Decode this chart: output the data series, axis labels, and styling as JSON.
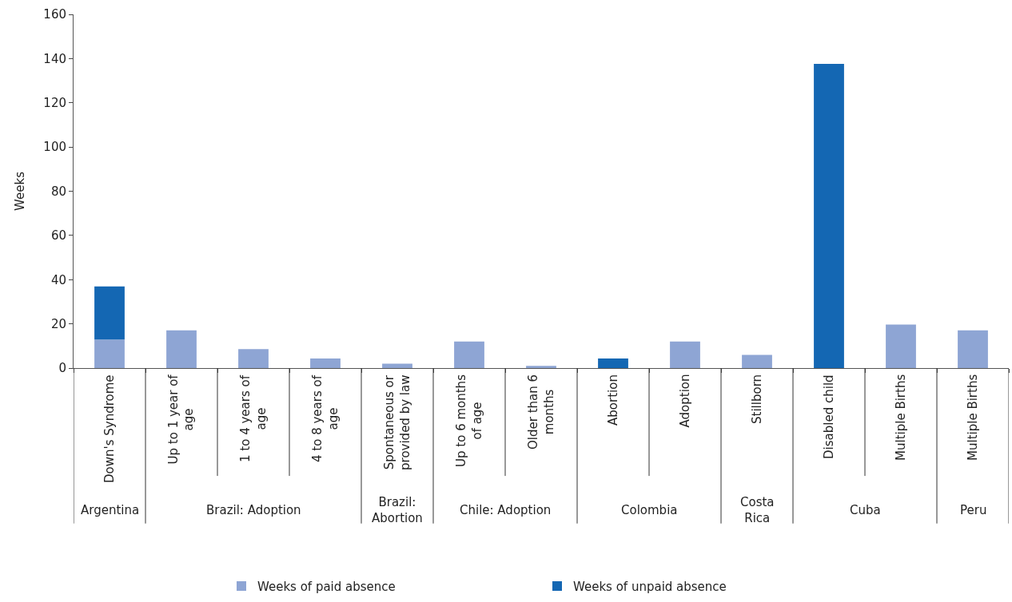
{
  "chart_data": [
    {
      "type": "bar",
      "stacked": true,
      "ylabel": "Weeks",
      "xlabel": "Argentina",
      "categories": [
        "Down's Syndrome"
      ],
      "ylim": [
        0,
        160
      ],
      "yticks": [
        0,
        20,
        40,
        60,
        80,
        100,
        120,
        140,
        160
      ],
      "legend": "bottom",
      "series": [
        {
          "name": "Weeks of paid absence",
          "color": "#8ea5d4",
          "values": [
            12.9
          ]
        },
        {
          "name": "Weeks of unpaid absence",
          "color": "#1467b3",
          "values": [
            24
          ]
        }
      ]
    },
    {
      "type": "bar",
      "xlabel": "Brazil: Adoption",
      "categories": [
        "Up to 1 year of age",
        "1 to 4 years of age",
        "4 to 8 years of age"
      ],
      "ylim": [
        0,
        160
      ],
      "tick_labels": "x",
      "series": [
        {
          "color": "#8ea5d4",
          "values": [
            17.1,
            8.6,
            4.3
          ]
        }
      ]
    },
    {
      "type": "bar",
      "xlabel": "Brazil: Abortion",
      "categories": [
        "Spontaneous or provided by law"
      ],
      "ylim": [
        0,
        160
      ],
      "tick_labels": "x",
      "series": [
        {
          "color": "#8ea5d4",
          "values": [
            2
          ]
        }
      ]
    },
    {
      "type": "bar",
      "xlabel": "Chile: Adoption",
      "categories": [
        "Up to 6 months of age",
        "Older than 6 months"
      ],
      "ylim": [
        0,
        160
      ],
      "tick_labels": "x",
      "series": [
        {
          "color": "#8ea5d4",
          "values": [
            12,
            1
          ]
        }
      ]
    },
    {
      "type": "bar",
      "stacked": true,
      "xlabel": "Colombia",
      "categories": [
        "Abortion",
        "Adoption"
      ],
      "ylim": [
        0,
        160
      ],
      "tick_labels": "x",
      "series": [
        {
          "color": "#8ea5d4",
          "values": [
            null,
            12
          ]
        },
        {
          "color": "#1467b3",
          "values": [
            4.3,
            null
          ]
        }
      ]
    },
    {
      "type": "bar",
      "xlabel": "Costa Rica",
      "categories": [
        "Stillborn"
      ],
      "ylim": [
        0,
        160
      ],
      "tick_labels": "x",
      "series": [
        {
          "color": "#8ea5d4",
          "values": [
            6
          ]
        }
      ]
    },
    {
      "type": "bar",
      "stacked": true,
      "xlabel": "Cuba",
      "categories": [
        "Disabled child",
        "Multiple Births"
      ],
      "ylim": [
        0,
        160
      ],
      "tick_labels": "x",
      "series": [
        {
          "color": "#8ea5d4",
          "values": [
            null,
            19.7
          ]
        },
        {
          "color": "#1467b3",
          "values": [
            137.6,
            null
          ]
        }
      ]
    },
    {
      "type": "bar",
      "xlabel": "Peru",
      "categories": [
        "Multiple Births"
      ],
      "ylim": [
        0,
        160
      ],
      "tick_labels": "x",
      "series": [
        {
          "color": "#8ea5d4",
          "values": [
            17.1
          ]
        }
      ]
    }
  ]
}
